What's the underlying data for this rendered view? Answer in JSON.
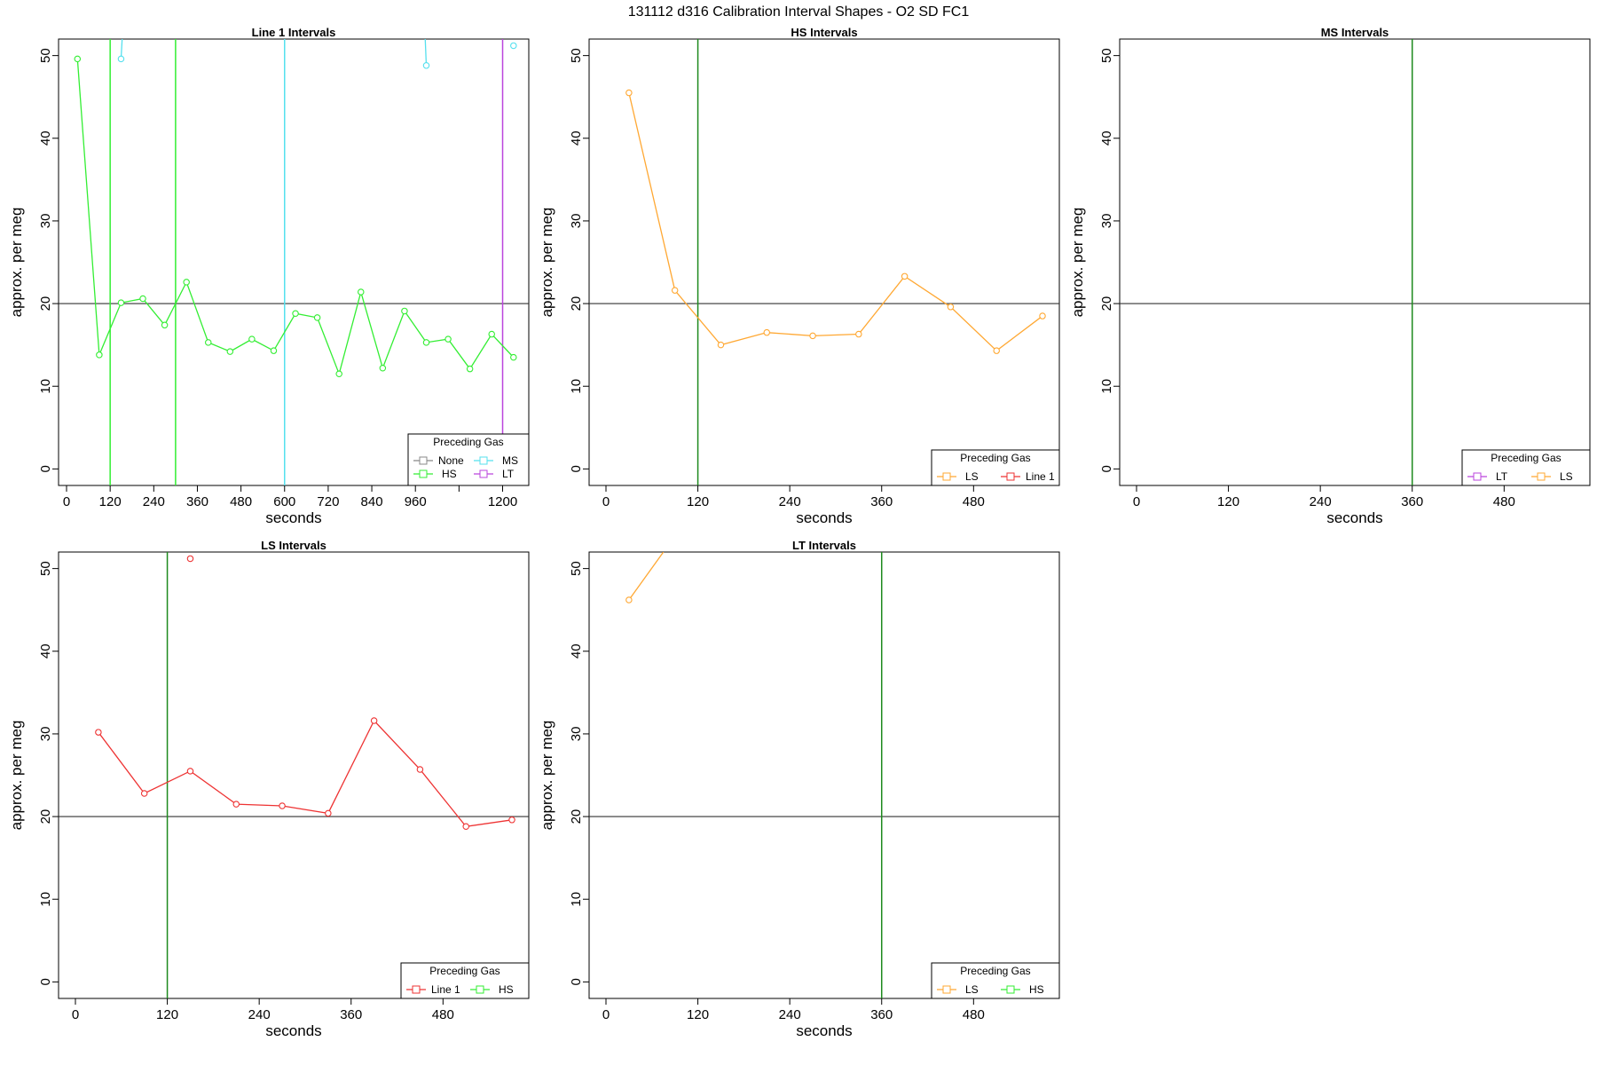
{
  "title": "131112   d316   Calibration Interval Shapes - O2 SD FC1",
  "colors": {
    "None": "#888888",
    "HS": "#33ee33",
    "MS": "#55e0ee",
    "LT": "#bb44dd",
    "LS": "#ffa833",
    "Line 1": "#ee3333",
    "marker_green": "#1e8a1e",
    "refline": "#333333"
  },
  "chart_data": [
    {
      "type": "line",
      "title": "Line 1 Intervals",
      "xlabel": "seconds",
      "ylabel": "approx. per meg",
      "xlim": [
        -22,
        1272
      ],
      "ylim": [
        -2,
        52
      ],
      "xticks": [
        0,
        120,
        240,
        360,
        480,
        600,
        720,
        840,
        960,
        1080,
        1200
      ],
      "xtick_labels": [
        "0",
        "120",
        "240",
        "360",
        "480",
        "600",
        "720",
        "840",
        "960",
        "",
        "1200"
      ],
      "yticks": [
        0,
        10,
        20,
        30,
        40,
        50
      ],
      "hline": 20,
      "vlines": [
        {
          "x": 120,
          "gas": "HS"
        },
        {
          "x": 300,
          "gas": "HS"
        },
        {
          "x": 600,
          "gas": "MS"
        },
        {
          "x": 1200,
          "gas": "LT"
        }
      ],
      "series": [
        {
          "gas": "HS",
          "x": [
            30,
            90,
            150,
            210,
            270,
            330,
            390,
            450,
            510,
            570,
            630,
            690,
            750,
            810,
            870,
            930,
            990,
            1050,
            1110,
            1170,
            1230
          ],
          "y": [
            49.6,
            13.8,
            20.1,
            20.6,
            17.4,
            22.6,
            15.3,
            14.2,
            15.7,
            14.3,
            18.8,
            18.3,
            11.5,
            21.4,
            12.2,
            19.1,
            15.3,
            15.7,
            12.1,
            16.3,
            13.5
          ]
        },
        {
          "gas": "MS",
          "x": [
            150,
            153
          ],
          "y": [
            49.6,
            52
          ],
          "clip": true
        },
        {
          "gas": "MS",
          "x": [
            990,
            987
          ],
          "y": [
            48.8,
            52
          ],
          "clip": true
        },
        {
          "gas": "MS",
          "x": [
            1230
          ],
          "y": [
            51.2
          ]
        }
      ],
      "legend": {
        "title": "Preceding Gas",
        "position": "bottom-right",
        "columns": 2,
        "entries": [
          "None",
          "MS",
          "HS",
          "LT"
        ]
      }
    },
    {
      "type": "line",
      "title": "HS Intervals",
      "xlabel": "seconds",
      "ylabel": "approx. per meg",
      "xlim": [
        -22,
        592
      ],
      "ylim": [
        -2,
        52
      ],
      "xticks": [
        0,
        120,
        240,
        360,
        480
      ],
      "xtick_labels": [
        "0",
        "120",
        "240",
        "360",
        "480"
      ],
      "yticks": [
        0,
        10,
        20,
        30,
        40,
        50
      ],
      "hline": 20,
      "vlines": [
        {
          "x": 120,
          "gas": "marker_green"
        }
      ],
      "series": [
        {
          "gas": "LS",
          "x": [
            30,
            90,
            150,
            210,
            270,
            330,
            390,
            450,
            510,
            570
          ],
          "y": [
            45.5,
            21.6,
            15.0,
            16.5,
            16.1,
            16.3,
            23.3,
            19.6,
            14.3,
            18.5
          ]
        }
      ],
      "legend": {
        "title": "Preceding Gas",
        "position": "bottom-right",
        "columns": 2,
        "entries": [
          "LS",
          "Line 1"
        ]
      }
    },
    {
      "type": "line",
      "title": "MS Intervals",
      "xlabel": "seconds",
      "ylabel": "approx. per meg",
      "xlim": [
        -22,
        592
      ],
      "ylim": [
        -2,
        52
      ],
      "xticks": [
        0,
        120,
        240,
        360,
        480
      ],
      "xtick_labels": [
        "0",
        "120",
        "240",
        "360",
        "480"
      ],
      "yticks": [
        0,
        10,
        20,
        30,
        40,
        50
      ],
      "hline": 20,
      "vlines": [
        {
          "x": 360,
          "gas": "marker_green"
        }
      ],
      "series": [],
      "legend": {
        "title": "Preceding Gas",
        "position": "bottom-right",
        "columns": 2,
        "entries": [
          "LT",
          "LS"
        ]
      }
    },
    {
      "type": "line",
      "title": "LS Intervals",
      "xlabel": "seconds",
      "ylabel": "approx. per meg",
      "xlim": [
        -22,
        592
      ],
      "ylim": [
        -2,
        52
      ],
      "xticks": [
        0,
        120,
        240,
        360,
        480
      ],
      "xtick_labels": [
        "0",
        "120",
        "240",
        "360",
        "480"
      ],
      "yticks": [
        0,
        10,
        20,
        30,
        40,
        50
      ],
      "hline": 20,
      "vlines": [
        {
          "x": 120,
          "gas": "marker_green"
        }
      ],
      "series": [
        {
          "gas": "Line 1",
          "x": [
            30,
            90,
            150,
            210,
            270,
            330,
            390,
            450,
            510,
            570
          ],
          "y": [
            30.2,
            22.8,
            25.5,
            21.5,
            21.3,
            20.4,
            31.6,
            25.7,
            18.8,
            19.6
          ]
        },
        {
          "gas": "Line 1",
          "x": [
            150
          ],
          "y": [
            51.2
          ]
        }
      ],
      "legend": {
        "title": "Preceding Gas",
        "position": "bottom-right",
        "columns": 2,
        "entries": [
          "Line 1",
          "HS"
        ]
      }
    },
    {
      "type": "line",
      "title": "LT Intervals",
      "xlabel": "seconds",
      "ylabel": "approx. per meg",
      "xlim": [
        -22,
        592
      ],
      "ylim": [
        -2,
        52
      ],
      "xticks": [
        0,
        120,
        240,
        360,
        480
      ],
      "xtick_labels": [
        "0",
        "120",
        "240",
        "360",
        "480"
      ],
      "yticks": [
        0,
        10,
        20,
        30,
        40,
        50
      ],
      "hline": 20,
      "vlines": [
        {
          "x": 360,
          "gas": "marker_green"
        }
      ],
      "series": [
        {
          "gas": "LS",
          "x": [
            30,
            75
          ],
          "y": [
            46.2,
            52
          ],
          "clip": true
        }
      ],
      "legend": {
        "title": "Preceding Gas",
        "position": "bottom-right",
        "columns": 2,
        "entries": [
          "LS",
          "HS"
        ]
      }
    }
  ]
}
